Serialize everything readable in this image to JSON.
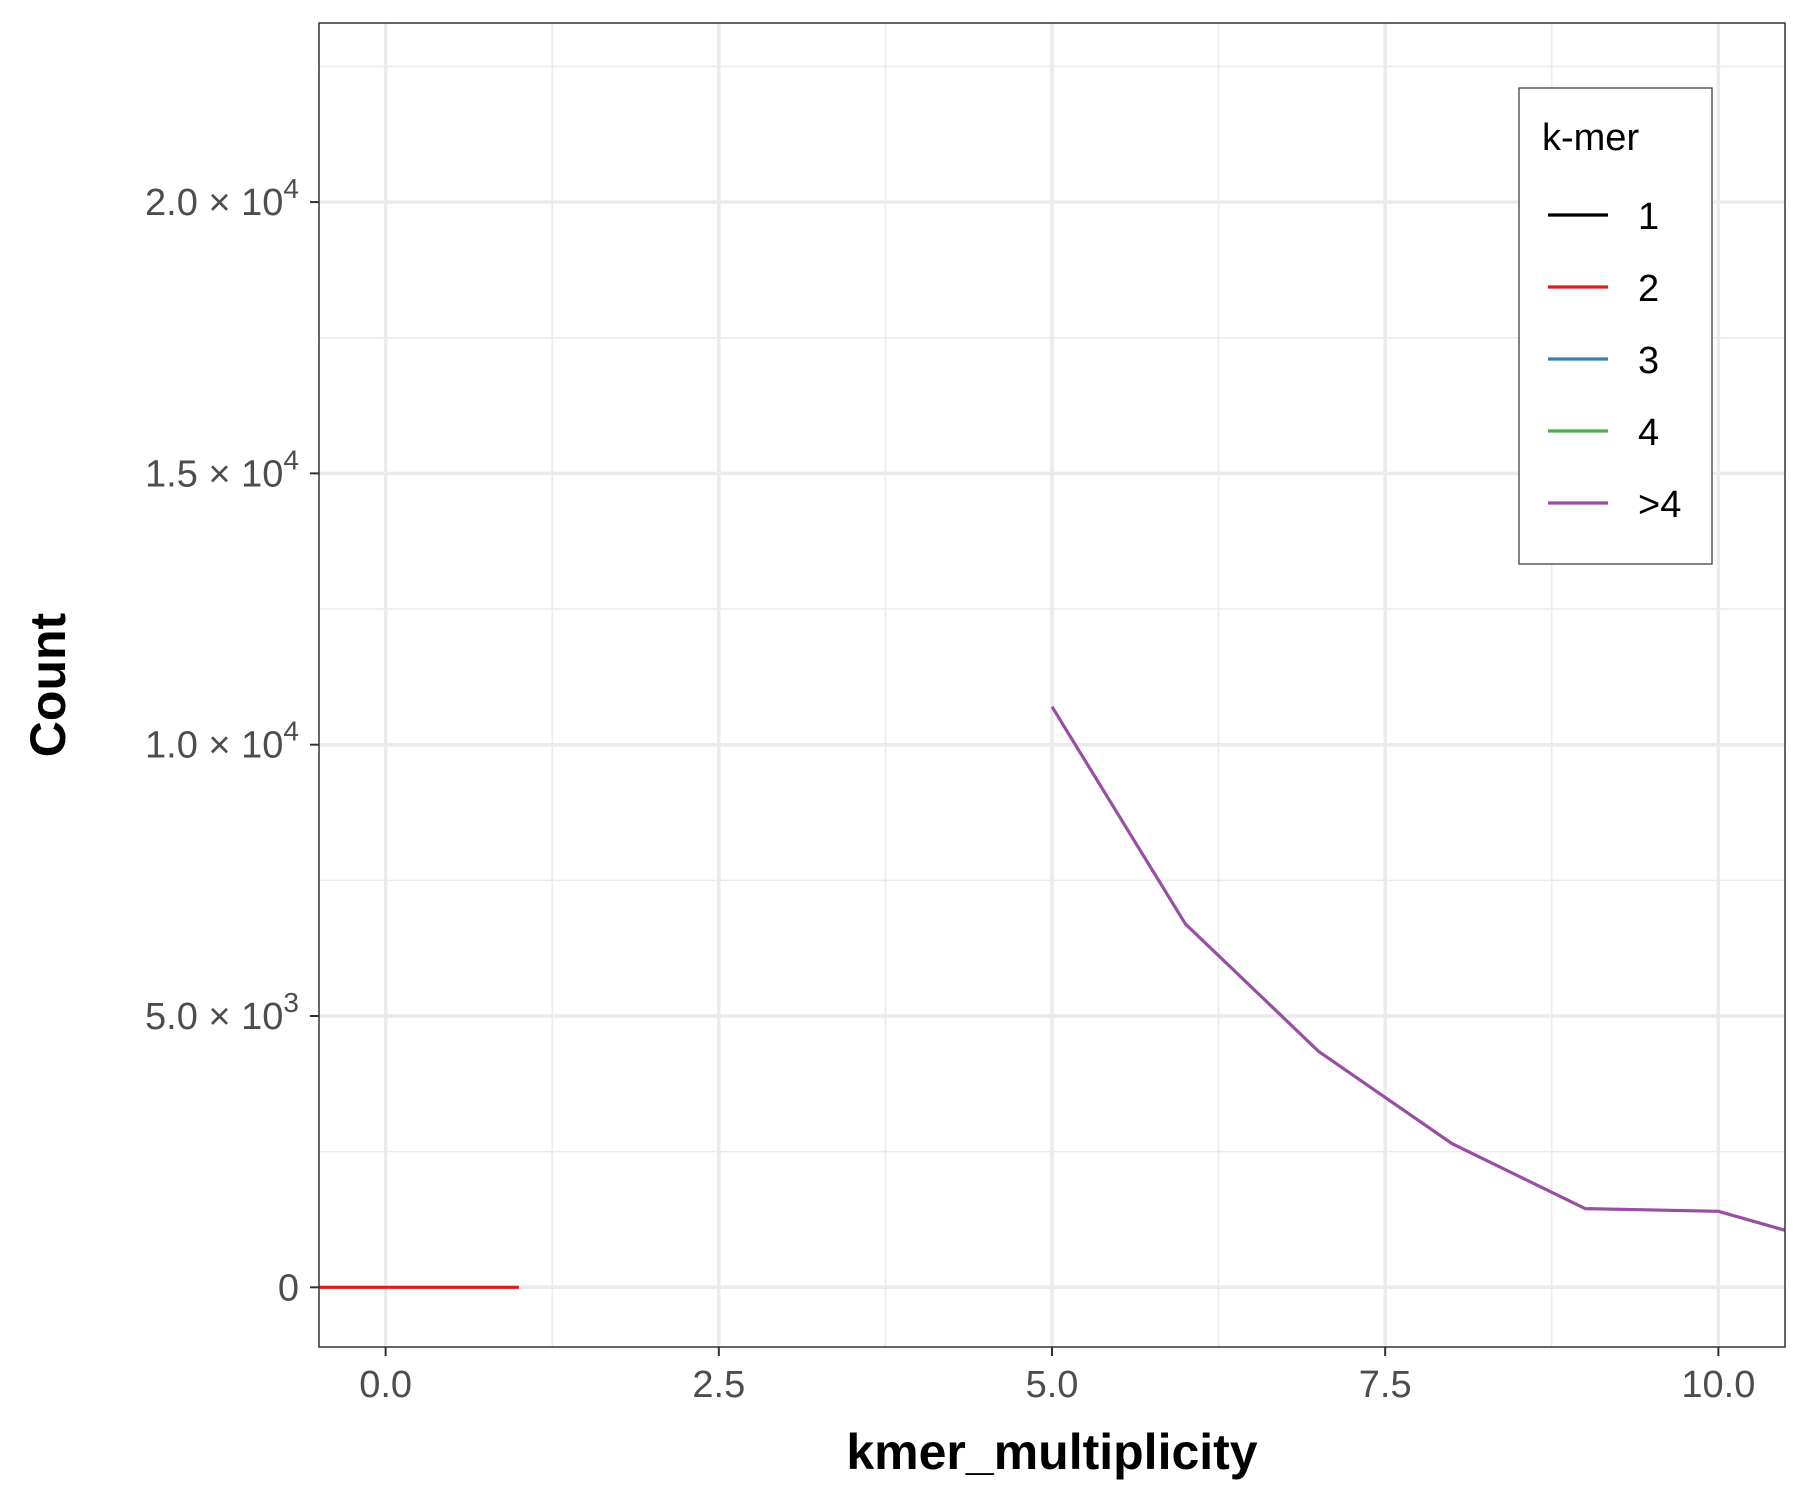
{
  "chart_data": {
    "type": "line",
    "xlabel": "kmer_multiplicity",
    "ylabel": "Count",
    "xlim": [
      -0.5,
      10.5
    ],
    "ylim": [
      -1100,
      23300
    ],
    "x_major_ticks": [
      0,
      2.5,
      5,
      7.5,
      10
    ],
    "x_minor_ticks": [
      1.25,
      3.75,
      6.25,
      8.75
    ],
    "x_tick_labels": [
      "0.0",
      "2.5",
      "5.0",
      "7.5",
      "10.0"
    ],
    "y_major_ticks": [
      0,
      5000,
      10000,
      15000,
      20000
    ],
    "y_minor_ticks": [
      2500,
      7500,
      12500,
      17500,
      22500
    ],
    "y_tick_labels": [
      {
        "base": "0",
        "exp": ""
      },
      {
        "base": "5.0 × 10",
        "exp": "3"
      },
      {
        "base": "1.0 × 10",
        "exp": "4"
      },
      {
        "base": "1.5 × 10",
        "exp": "4"
      },
      {
        "base": "2.0 × 10",
        "exp": "4"
      }
    ],
    "grid": true,
    "legend": {
      "title": "k-mer",
      "position": "top-right"
    },
    "series": [
      {
        "name": "1",
        "color": "#000000",
        "x": [],
        "y": []
      },
      {
        "name": "2",
        "color": "#e41a1c",
        "x": [
          -0.5,
          0,
          1
        ],
        "y": [
          0,
          0,
          0
        ]
      },
      {
        "name": "3",
        "color": "#377eb8",
        "x": [],
        "y": []
      },
      {
        "name": "4",
        "color": "#4daf4a",
        "x": [],
        "y": []
      },
      {
        "name": ">4",
        "color": "#984ea3",
        "x": [
          5,
          6,
          7,
          8,
          9,
          10,
          10.5
        ],
        "y": [
          10700,
          6700,
          4350,
          2650,
          1450,
          1400,
          1050
        ]
      }
    ]
  }
}
